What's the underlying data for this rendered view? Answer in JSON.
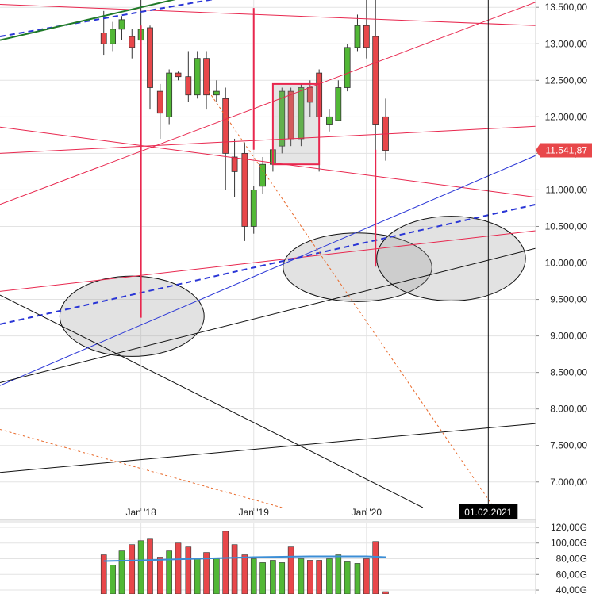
{
  "chart_data": {
    "type": "candlestick",
    "price_axis": {
      "ticks": [
        7000,
        7500,
        8000,
        8500,
        9000,
        9500,
        10000,
        10500,
        11000,
        11500,
        12000,
        12500,
        13000,
        13500
      ],
      "tick_labels": [
        "7.000,00",
        "7.500,00",
        "8.000,00",
        "8.500,00",
        "9.000,00",
        "9.500,00",
        "10.000,00",
        "10.500,00",
        "11.000,00",
        "11.500,00",
        "12.000,00",
        "12.500,00",
        "13.000,00",
        "13.500,00"
      ],
      "range": [
        6650,
        13600
      ]
    },
    "last_price": {
      "value": 11541.87,
      "label": "11.541,87",
      "color": "#e8474a"
    },
    "time_axis": {
      "labels": [
        {
          "label": "Jan '18",
          "t": 2018.0
        },
        {
          "label": "Jan '19",
          "t": 2019.0
        },
        {
          "label": "Jan '20",
          "t": 2020.0
        }
      ],
      "range": [
        2016.75,
        2021.5
      ],
      "crosshair": {
        "t": 2021.08,
        "label": "01.02.2021"
      }
    },
    "volume_axis": {
      "ticks": [
        40,
        60,
        80,
        100,
        120
      ],
      "tick_labels": [
        "40,00G",
        "60,00G",
        "80,00G",
        "100,00G",
        "120,00G"
      ],
      "range": [
        35,
        125
      ]
    },
    "candles": [
      {
        "t": 2017.67,
        "o": 13150,
        "h": 13450,
        "l": 12850,
        "c": 13000,
        "v": 85
      },
      {
        "t": 2017.75,
        "o": 13000,
        "h": 13300,
        "l": 12900,
        "c": 13200,
        "v": 72
      },
      {
        "t": 2017.83,
        "o": 13200,
        "h": 13380,
        "l": 13050,
        "c": 13330,
        "v": 90
      },
      {
        "t": 2017.92,
        "o": 13100,
        "h": 13200,
        "l": 12800,
        "c": 12950,
        "v": 98
      },
      {
        "t": 2018.0,
        "o": 13050,
        "h": 13600,
        "l": 12700,
        "c": 13200,
        "v": 103
      },
      {
        "t": 2018.08,
        "o": 13220,
        "h": 13250,
        "l": 12100,
        "c": 12400,
        "v": 105
      },
      {
        "t": 2018.17,
        "o": 12350,
        "h": 12450,
        "l": 11700,
        "c": 12050,
        "v": 82
      },
      {
        "t": 2018.25,
        "o": 12000,
        "h": 12650,
        "l": 11900,
        "c": 12600,
        "v": 90
      },
      {
        "t": 2018.33,
        "o": 12600,
        "h": 12620,
        "l": 12500,
        "c": 12550,
        "v": 100
      },
      {
        "t": 2018.42,
        "o": 12550,
        "h": 12900,
        "l": 12200,
        "c": 12300,
        "v": 95
      },
      {
        "t": 2018.5,
        "o": 12300,
        "h": 12900,
        "l": 12250,
        "c": 12800,
        "v": 80
      },
      {
        "t": 2018.58,
        "o": 12800,
        "h": 12900,
        "l": 12100,
        "c": 12300,
        "v": 88
      },
      {
        "t": 2018.67,
        "o": 12300,
        "h": 12500,
        "l": 12200,
        "c": 12350,
        "v": 80
      },
      {
        "t": 2018.75,
        "o": 12250,
        "h": 12400,
        "l": 11000,
        "c": 11500,
        "v": 115
      },
      {
        "t": 2018.83,
        "o": 11450,
        "h": 11700,
        "l": 10900,
        "c": 11250,
        "v": 98
      },
      {
        "t": 2018.92,
        "o": 11500,
        "h": 11650,
        "l": 10300,
        "c": 10500,
        "v": 85
      },
      {
        "t": 2019.0,
        "o": 10500,
        "h": 11050,
        "l": 10400,
        "c": 11000,
        "v": 80
      },
      {
        "t": 2019.08,
        "o": 11050,
        "h": 11450,
        "l": 10950,
        "c": 11350,
        "v": 75
      },
      {
        "t": 2019.17,
        "o": 11350,
        "h": 11700,
        "l": 11250,
        "c": 11550,
        "v": 78
      },
      {
        "t": 2019.25,
        "o": 11600,
        "h": 12400,
        "l": 11500,
        "c": 12350,
        "v": 75
      },
      {
        "t": 2019.33,
        "o": 12350,
        "h": 12400,
        "l": 11600,
        "c": 11700,
        "v": 95
      },
      {
        "t": 2019.42,
        "o": 11700,
        "h": 12450,
        "l": 11600,
        "c": 12400,
        "v": 80
      },
      {
        "t": 2019.5,
        "o": 12400,
        "h": 12500,
        "l": 12000,
        "c": 12200,
        "v": 78
      },
      {
        "t": 2019.58,
        "o": 12600,
        "h": 12650,
        "l": 11250,
        "c": 12000,
        "v": 78
      },
      {
        "t": 2019.67,
        "o": 11900,
        "h": 12100,
        "l": 11800,
        "c": 12000,
        "v": 80
      },
      {
        "t": 2019.75,
        "o": 11950,
        "h": 12500,
        "l": 11950,
        "c": 12400,
        "v": 85
      },
      {
        "t": 2019.83,
        "o": 12400,
        "h": 13000,
        "l": 12350,
        "c": 12950,
        "v": 76
      },
      {
        "t": 2019.92,
        "o": 12950,
        "h": 13400,
        "l": 12900,
        "c": 13250,
        "v": 74
      },
      {
        "t": 2020.0,
        "o": 13250,
        "h": 13600,
        "l": 12800,
        "c": 12950,
        "v": 80
      },
      {
        "t": 2020.08,
        "o": 13100,
        "h": 13600,
        "l": 9950,
        "c": 11900,
        "v": 102
      },
      {
        "t": 2020.17,
        "o": 12000,
        "h": 12250,
        "l": 11400,
        "c": 11540,
        "v": 38
      }
    ],
    "volume_ma": [
      {
        "t": 2017.67,
        "v": 77
      },
      {
        "t": 2018.0,
        "v": 78
      },
      {
        "t": 2018.5,
        "v": 80
      },
      {
        "t": 2019.0,
        "v": 82
      },
      {
        "t": 2019.5,
        "v": 83
      },
      {
        "t": 2020.0,
        "v": 83
      },
      {
        "t": 2020.17,
        "v": 82
      }
    ],
    "trendlines": [
      {
        "color": "#e8274e",
        "style": "solid",
        "p1": {
          "t": 2016.75,
          "v": 13540
        },
        "p2": {
          "t": 2021.5,
          "v": 13250
        }
      },
      {
        "color": "#e8274e",
        "style": "solid",
        "p1": {
          "t": 2016.75,
          "v": 11860
        },
        "p2": {
          "t": 2021.5,
          "v": 10900
        }
      },
      {
        "color": "#e8274e",
        "style": "solid",
        "p1": {
          "t": 2016.75,
          "v": 11500
        },
        "p2": {
          "t": 2021.5,
          "v": 11870
        }
      },
      {
        "color": "#e8274e",
        "style": "solid",
        "p1": {
          "t": 2016.75,
          "v": 10800
        },
        "p2": {
          "t": 2021.5,
          "v": 13570
        }
      },
      {
        "color": "#e8274e",
        "style": "solid",
        "p1": {
          "t": 2016.75,
          "v": 9610
        },
        "p2": {
          "t": 2021.5,
          "v": 10440
        }
      },
      {
        "color": "#2a36d6",
        "style": "dashed",
        "p1": {
          "t": 2016.75,
          "v": 9160
        },
        "p2": {
          "t": 2021.5,
          "v": 10800
        }
      },
      {
        "color": "#2a36d6",
        "style": "dashed",
        "p1": {
          "t": 2016.75,
          "v": 13100
        },
        "p2": {
          "t": 2018.9,
          "v": 13680
        }
      },
      {
        "color": "#2a36d6",
        "style": "solid",
        "p1": {
          "t": 2016.75,
          "v": 8320
        },
        "p2": {
          "t": 2021.5,
          "v": 11470
        }
      },
      {
        "color": "#111111",
        "style": "solid",
        "p1": {
          "t": 2016.75,
          "v": 8360
        },
        "p2": {
          "t": 2021.5,
          "v": 10200
        }
      },
      {
        "color": "#111111",
        "style": "solid",
        "p1": {
          "t": 2016.75,
          "v": 7130
        },
        "p2": {
          "t": 2021.5,
          "v": 7800
        }
      },
      {
        "color": "#111111",
        "style": "solid",
        "p1": {
          "t": 2016.75,
          "v": 9560
        },
        "p2": {
          "t": 2020.5,
          "v": 6650
        }
      },
      {
        "color": "#e8692a",
        "style": "dotted",
        "p1": {
          "t": 2018.6,
          "v": 12350
        },
        "p2": {
          "t": 2021.13,
          "v": 6650
        }
      },
      {
        "color": "#e8692a",
        "style": "dotted",
        "p1": {
          "t": 2016.75,
          "v": 7720
        },
        "p2": {
          "t": 2019.25,
          "v": 6650
        }
      },
      {
        "color": "#1f7a28",
        "style": "solid",
        "p1": {
          "t": 2016.75,
          "v": 13050
        },
        "p2": {
          "t": 2018.5,
          "v": 13680
        }
      }
    ],
    "verticals": [
      {
        "t": 2018.0,
        "from": 9250,
        "to": 13250,
        "color": "#e8274e"
      },
      {
        "t": 2019.0,
        "from": 11550,
        "to": 13490,
        "color": "#e8274e"
      },
      {
        "t": 2020.08,
        "from": 9950,
        "to": 11550,
        "color": "#e8274e"
      }
    ],
    "rectangles": [
      {
        "t1": 2019.17,
        "t2": 2019.58,
        "v1": 11350,
        "v2": 12450,
        "color": "#e8274e"
      }
    ],
    "ellipses": [
      {
        "t": 2017.92,
        "v": 9270,
        "dt": 0.64,
        "dv": 550
      },
      {
        "t": 2019.92,
        "v": 9940,
        "dt": 0.66,
        "dv": 470
      },
      {
        "t": 2020.75,
        "v": 10060,
        "dt": 0.66,
        "dv": 580
      }
    ],
    "colors": {
      "up": "#52b836",
      "down": "#e8474a",
      "grid": "#e3e3e3",
      "crosshair": "#111111",
      "volume_ma": "#3b8ed6"
    }
  }
}
